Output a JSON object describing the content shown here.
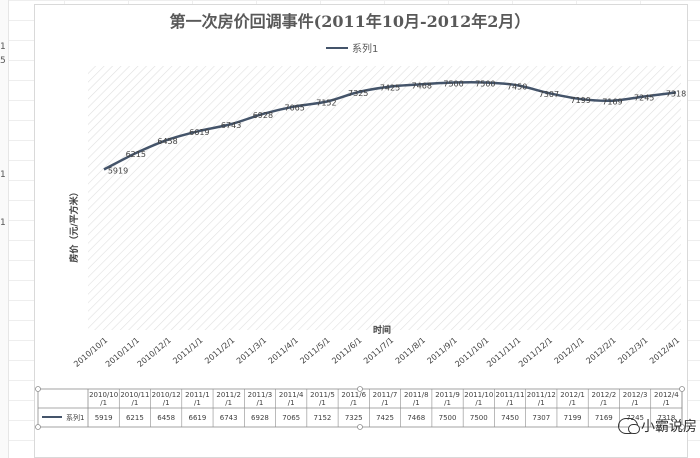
{
  "window": {
    "strip_numbers": [
      "1",
      "5",
      "1",
      "1"
    ]
  },
  "chart_data": {
    "type": "line",
    "title": "第一次房价回调事件(2011年10月-2012年2月）",
    "xlabel": "时间",
    "ylabel": "房价（元/平方米）",
    "legend_position": "top-center",
    "grid": true,
    "categories": [
      "2010/10/1",
      "2010/11/1",
      "2010/12/1",
      "2011/1/1",
      "2011/2/1",
      "2011/3/1",
      "2011/4/1",
      "2011/5/1",
      "2011/6/1",
      "2011/7/1",
      "2011/8/1",
      "2011/9/1",
      "2011/10/1",
      "2011/11/1",
      "2011/12/1",
      "2012/1/1",
      "2012/2/1",
      "2012/3/1",
      "2012/4/1"
    ],
    "table_categories": [
      "2010/10/1",
      "2010/11/1",
      "2010/12/1",
      "2011/1/1",
      "2011/2/1",
      "2011/3/1",
      "2011/4/1",
      "2011/5/1",
      "2011/6/1",
      "2011/7/1",
      "2011/8/1",
      "2011/9/1",
      "2011/10/1",
      "2011/11/1",
      "2011/12/1",
      "2012/1/1",
      "2012/2/1",
      "2012/3/1",
      "2012/4/1"
    ],
    "series": [
      {
        "name": "系列1",
        "values": [
          5919,
          6215,
          6458,
          6619,
          6743,
          6928,
          7065,
          7152,
          7325,
          7425,
          7468,
          7500,
          7500,
          7450,
          7307,
          7199,
          7169,
          7245,
          7318
        ]
      }
    ],
    "ylim": [
      3000,
      7800
    ],
    "colors": {
      "line": "#44546a",
      "text": "#404040"
    }
  },
  "watermark": {
    "text": "小霸说房",
    "icon": "wechat-icon"
  }
}
